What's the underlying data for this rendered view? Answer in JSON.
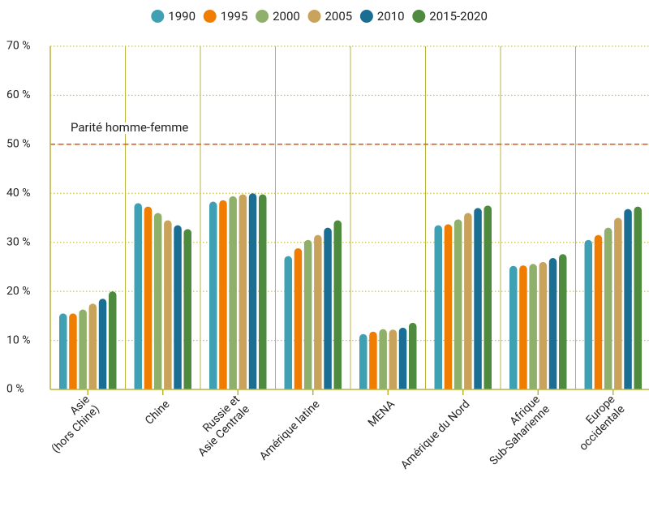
{
  "chart_data": {
    "type": "bar",
    "categories": [
      "Asie\n(hors Chine)",
      "Chine",
      "Russie et\nAsie Centrale",
      "Amérique latine",
      "MENA",
      "Amérique du Nord",
      "Afrique\nSub-Saharienne",
      "Europe\noccidentale"
    ],
    "series": [
      {
        "name": "1990",
        "color": "#3fa0b4",
        "values": [
          15.5,
          38,
          38.3,
          27.2,
          11.3,
          33.5,
          25.2,
          30.5
        ]
      },
      {
        "name": "1995",
        "color": "#f07d00",
        "values": [
          15.5,
          37.3,
          38.6,
          28.8,
          11.8,
          33.7,
          25.3,
          31.5
        ]
      },
      {
        "name": "2000",
        "color": "#8fb06a",
        "values": [
          16.3,
          36,
          39.4,
          30.5,
          12.3,
          34.7,
          25.6,
          33
        ]
      },
      {
        "name": "2005",
        "color": "#c9a25c",
        "values": [
          17.5,
          34.5,
          39.8,
          31.5,
          12.2,
          36,
          26,
          35
        ]
      },
      {
        "name": "2010",
        "color": "#1a6e94",
        "values": [
          18.5,
          33.5,
          40,
          33,
          12.6,
          37,
          26.8,
          36.8
        ]
      },
      {
        "name": "2015-2020",
        "color": "#4e8b3e",
        "values": [
          20,
          32.7,
          39.8,
          34.5,
          13.6,
          37.5,
          27.6,
          37.3
        ]
      }
    ],
    "ylim": [
      0,
      70
    ],
    "yticks": [
      {
        "value": 0,
        "label": "0 %"
      },
      {
        "value": 10,
        "label": "10 %"
      },
      {
        "value": 20,
        "label": "20 %"
      },
      {
        "value": 30,
        "label": "30 %"
      },
      {
        "value": 40,
        "label": "40 %"
      },
      {
        "value": 50,
        "label": "50 %"
      },
      {
        "value": 60,
        "label": "60 %"
      },
      {
        "value": 70,
        "label": "70 %"
      }
    ],
    "grid": true,
    "reference_line": {
      "value": 50,
      "label": "Parité homme-femme",
      "color": "#e0622a"
    }
  }
}
